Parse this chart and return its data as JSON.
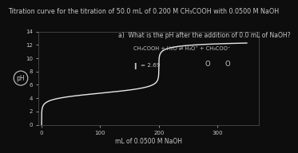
{
  "title": "Titration curve for the titration of 50.0 mL of 0.200 M CH₃COOH with 0.0500 M NaOH",
  "xlabel": "mL of 0.0500 M NaOH",
  "ylabel": "pH",
  "xlim": [
    -5,
    370
  ],
  "ylim": [
    0,
    14
  ],
  "yticks": [
    0.0,
    2.0,
    4.0,
    6.0,
    8.0,
    10.0,
    12.0,
    14.0
  ],
  "xticks": [
    0.0,
    100.0,
    200.0,
    300.0
  ],
  "background_color": "#0d0d0d",
  "plot_bg_color": "#0d0d0d",
  "curve_color": "#e8e8e8",
  "text_color": "#c8c8c8",
  "annotation_text": "a)  What is the pH after the addition of 0.0 mL of NaOH?",
  "reaction_text": "CH₃COOH + H₂O ⇌ H₃O⁺ + CH₃COO⁻",
  "answer_text": "= 2.69",
  "title_fontsize": 5.8,
  "axis_fontsize": 5.5,
  "tick_fontsize": 5.0,
  "annotation_fontsize": 5.5
}
